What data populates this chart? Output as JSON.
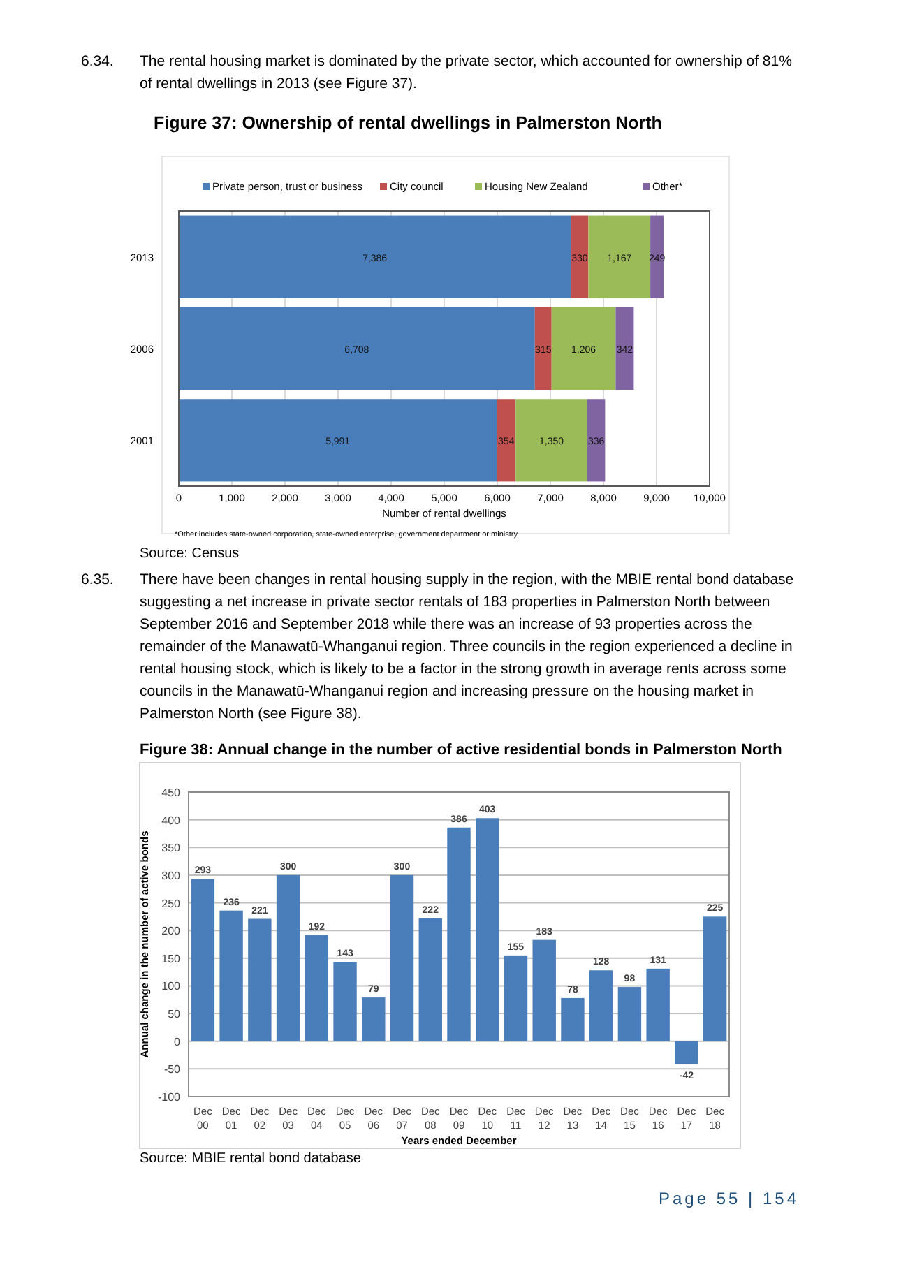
{
  "chart_data": [
    {
      "type": "bar",
      "orientation": "horizontal",
      "stacked": true,
      "title": "Figure 37: Ownership of rental dwellings in Palmerston North",
      "xlabel": "Number of rental dwellings",
      "categories": [
        "2013",
        "2006",
        "2001"
      ],
      "series": [
        {
          "name": "Private person, trust or business",
          "color": "#4a7ebb",
          "values": [
            7386,
            6708,
            5991
          ],
          "value_labels": [
            "7,386",
            "6,708",
            "5,991"
          ]
        },
        {
          "name": "City council",
          "color": "#c0504d",
          "values": [
            330,
            315,
            354
          ],
          "value_labels": [
            "330",
            "315",
            "354"
          ]
        },
        {
          "name": "Housing New Zealand",
          "color": "#9bbb59",
          "values": [
            1167,
            1206,
            1350
          ],
          "value_labels": [
            "1,167",
            "1,206",
            "1,350"
          ]
        },
        {
          "name": "Other*",
          "color": "#8064a2",
          "values": [
            249,
            342,
            336
          ],
          "value_labels": [
            "249",
            "342",
            "336"
          ]
        }
      ],
      "xlim": [
        0,
        10000
      ],
      "xticks": [
        0,
        {
          "value": 1000,
          "label": "1,000"
        },
        {
          "value": 2000,
          "label": "2,000"
        },
        {
          "value": 3000,
          "label": "3,000"
        },
        {
          "value": 4000,
          "label": "4,000"
        },
        {
          "value": 5000,
          "label": "5,000"
        },
        {
          "value": 6000,
          "label": "6,000"
        },
        {
          "value": 7000,
          "label": "7,000"
        },
        {
          "value": 8000,
          "label": "8,000"
        },
        {
          "value": 9000,
          "label": "9,000"
        },
        {
          "value": 10000,
          "label": "10,000"
        }
      ],
      "grid": "x",
      "legend": "top",
      "annotations": [
        "6.34. The rental housing market is dominated by the private sector, which accounted for ownership of 81% of rental dwellings in 2013 (see Figure 37).",
        "*Other includes state-owned corporation, state-owned enterprise, government department or ministry",
        "Source: Census"
      ]
    },
    {
      "type": "bar",
      "title": "Figure 38: Annual change in the number of active residential bonds in Palmerston North",
      "xlabel": "Years ended December",
      "ylabel": "Annual change in the number of active bonds",
      "categories": [
        "Dec 00",
        "Dec 01",
        "Dec 02",
        "Dec 03",
        "Dec 04",
        "Dec 05",
        "Dec 06",
        "Dec 07",
        "Dec 08",
        "Dec 09",
        "Dec 10",
        "Dec 11",
        "Dec 12",
        "Dec 13",
        "Dec 14",
        "Dec 15",
        "Dec 16",
        "Dec 17",
        "Dec 18"
      ],
      "values": [
        293,
        236,
        221,
        300,
        192,
        143,
        79,
        300,
        222,
        386,
        403,
        155,
        183,
        78,
        128,
        98,
        131,
        -42,
        225
      ],
      "color": "#4a7ebb",
      "ylim": [
        -100,
        450
      ],
      "yticks": [
        -100,
        -50,
        0,
        50,
        100,
        150,
        200,
        250,
        300,
        350,
        400,
        450
      ],
      "grid": "y",
      "data_labels": true,
      "annotations": [
        "6.35. There have been changes in rental housing supply in the region, with the MBIE rental bond database suggesting a net increase in private sector rentals of 183 properties in Palmerston North between September 2016 and September 2018 while there was an increase of 93 properties across the remainder of the Manawatū-Whanganui region.  Three councils in the region experienced a decline in rental housing stock, which is likely to be a factor in the strong growth in average rents across some councils in the Manawatū-Whanganui region and increasing pressure on the housing market in Palmerston North (see Figure 38).",
        "Source: MBIE rental bond database",
        "Page 55 | 154"
      ]
    }
  ]
}
